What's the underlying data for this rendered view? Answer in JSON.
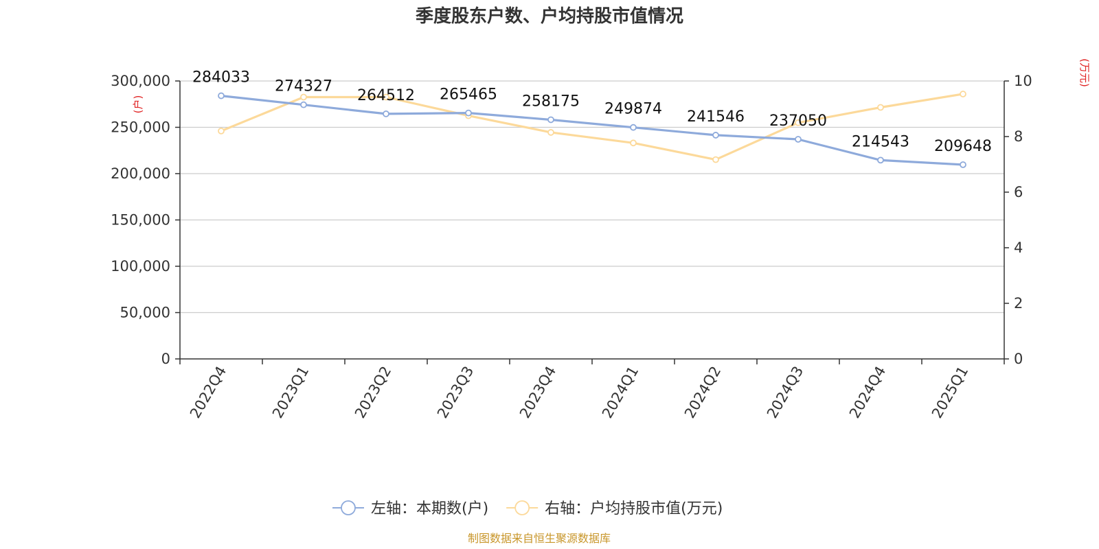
{
  "chart_data": {
    "type": "line",
    "title": "季度股东户数、户均持股市值情况",
    "categories": [
      "2022Q4",
      "2023Q1",
      "2023Q2",
      "2023Q3",
      "2023Q4",
      "2024Q1",
      "2024Q2",
      "2024Q3",
      "2024Q4",
      "2025Q1"
    ],
    "left_axis": {
      "unit": "(户)",
      "ylim": [
        0,
        300000
      ],
      "ticks": [
        0,
        50000,
        100000,
        150000,
        200000,
        250000,
        300000
      ],
      "tick_labels": [
        "0",
        "50,000",
        "100,000",
        "150,000",
        "200,000",
        "250,000",
        "300,000"
      ]
    },
    "right_axis": {
      "unit": "(万元)",
      "ylim": [
        0,
        10
      ],
      "ticks": [
        0,
        2,
        4,
        6,
        8,
        10
      ],
      "tick_labels": [
        "0",
        "2",
        "4",
        "6",
        "8",
        "10"
      ]
    },
    "series": [
      {
        "name": "左轴：本期数(户)",
        "axis": "left",
        "color": "#8eaadb",
        "values": [
          284033,
          274327,
          264512,
          265465,
          258175,
          249874,
          241546,
          237050,
          214543,
          209648
        ],
        "labels": [
          "284033",
          "274327",
          "264512",
          "265465",
          "258175",
          "249874",
          "241546",
          "237050",
          "214543",
          "209648"
        ]
      },
      {
        "name": "右轴：户均持股市值(万元)",
        "axis": "right",
        "color": "#fcd99a",
        "values": [
          8.2,
          9.42,
          9.42,
          8.75,
          8.15,
          7.77,
          7.17,
          8.5,
          9.05,
          9.53
        ]
      }
    ],
    "grid": true,
    "legend_position": "bottom",
    "source": "制图数据来自恒生聚源数据库"
  }
}
